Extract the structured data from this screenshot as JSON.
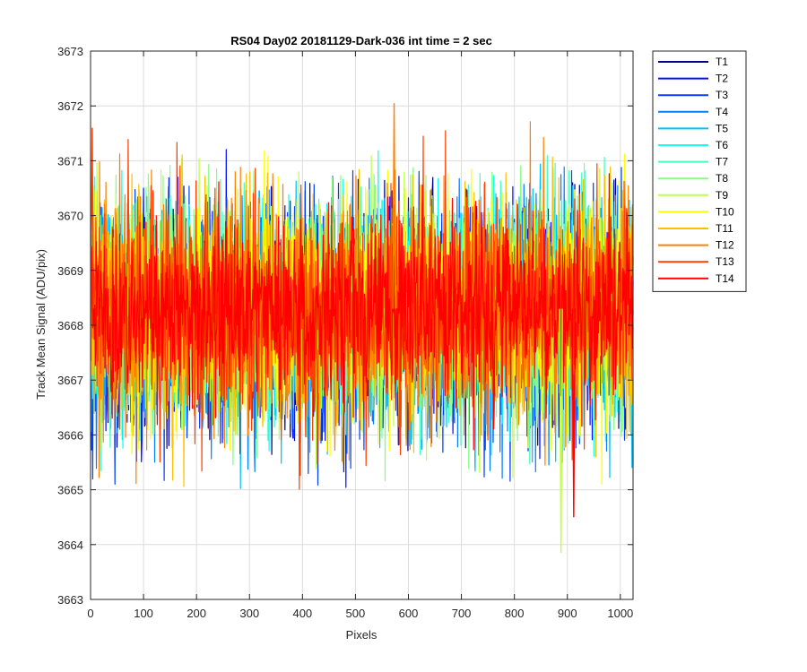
{
  "chart_data": {
    "type": "line",
    "title": "RS04 Day02 20181129-Dark-036 int time = 2 sec",
    "xlabel": "Pixels",
    "ylabel": "Track Mean Signal (ADU/pix)",
    "xlim": [
      0,
      1024
    ],
    "ylim": [
      3663,
      3673
    ],
    "xticks": [
      0,
      100,
      200,
      300,
      400,
      500,
      600,
      700,
      800,
      900,
      1000
    ],
    "yticks": [
      3663,
      3664,
      3665,
      3666,
      3667,
      3668,
      3669,
      3670,
      3671,
      3672,
      3673
    ],
    "grid": true,
    "legend_position": "outside-top-right",
    "series": [
      {
        "name": "T1",
        "color": "#00008f",
        "mean": 3668.1,
        "noise_sd": 1.0,
        "x_range": [
          1,
          1024
        ],
        "approx_min": 3665.6,
        "approx_max": 3670.8
      },
      {
        "name": "T2",
        "color": "#0010ff",
        "mean": 3668.1,
        "noise_sd": 1.0,
        "x_range": [
          1,
          1024
        ],
        "approx_min": 3664.9,
        "approx_max": 3671.3
      },
      {
        "name": "T3",
        "color": "#0040ff",
        "mean": 3668.1,
        "noise_sd": 1.0,
        "x_range": [
          1,
          1024
        ],
        "approx_min": 3665.0,
        "approx_max": 3670.9
      },
      {
        "name": "T4",
        "color": "#0080ff",
        "mean": 3668.2,
        "noise_sd": 1.0,
        "x_range": [
          1,
          1024
        ],
        "approx_min": 3665.2,
        "approx_max": 3670.9
      },
      {
        "name": "T5",
        "color": "#00bfff",
        "mean": 3668.2,
        "noise_sd": 1.0,
        "x_range": [
          1,
          1024
        ],
        "approx_min": 3664.5,
        "approx_max": 3671.0
      },
      {
        "name": "T6",
        "color": "#10ffef",
        "mean": 3668.3,
        "noise_sd": 1.0,
        "x_range": [
          1,
          1024
        ],
        "approx_min": 3664.8,
        "approx_max": 3671.4
      },
      {
        "name": "T7",
        "color": "#40ffbf",
        "mean": 3668.3,
        "noise_sd": 1.0,
        "x_range": [
          1,
          1024
        ],
        "approx_min": 3665.2,
        "approx_max": 3671.2
      },
      {
        "name": "T8",
        "color": "#80ff80",
        "mean": 3668.3,
        "noise_sd": 1.0,
        "x_range": [
          1,
          1024
        ],
        "approx_min": 3665.1,
        "approx_max": 3671.0
      },
      {
        "name": "T9",
        "color": "#bfff40",
        "mean": 3668.3,
        "noise_sd": 1.0,
        "x_range": [
          1,
          1024
        ],
        "approx_min": 3663.9,
        "approx_max": 3671.1
      },
      {
        "name": "T10",
        "color": "#ffff00",
        "mean": 3668.3,
        "noise_sd": 1.0,
        "x_range": [
          1,
          1024
        ],
        "approx_min": 3664.9,
        "approx_max": 3671.3
      },
      {
        "name": "T11",
        "color": "#ffbf00",
        "mean": 3668.3,
        "noise_sd": 1.0,
        "x_range": [
          1,
          1024
        ],
        "approx_min": 3664.8,
        "approx_max": 3671.4
      },
      {
        "name": "T12",
        "color": "#ff8000",
        "mean": 3668.3,
        "noise_sd": 1.0,
        "x_range": [
          1,
          1024
        ],
        "approx_min": 3665.0,
        "approx_max": 3672.1
      },
      {
        "name": "T13",
        "color": "#ff4000",
        "mean": 3668.3,
        "noise_sd": 1.0,
        "x_range": [
          1,
          1024
        ],
        "approx_min": 3664.6,
        "approx_max": 3671.6
      },
      {
        "name": "T14",
        "color": "#ff0000",
        "mean": 3668.3,
        "noise_sd": 0.8,
        "x_range": [
          1,
          1024
        ],
        "approx_min": 3664.5,
        "approx_max": 3671.2
      }
    ],
    "notable_points": [
      {
        "series": "T12",
        "x": 573,
        "y": 3672.05
      },
      {
        "series": "T9",
        "x": 888,
        "y": 3663.85
      },
      {
        "series": "T13",
        "x": 3,
        "y": 3671.6
      },
      {
        "series": "T14",
        "x": 912,
        "y": 3664.5
      }
    ]
  }
}
